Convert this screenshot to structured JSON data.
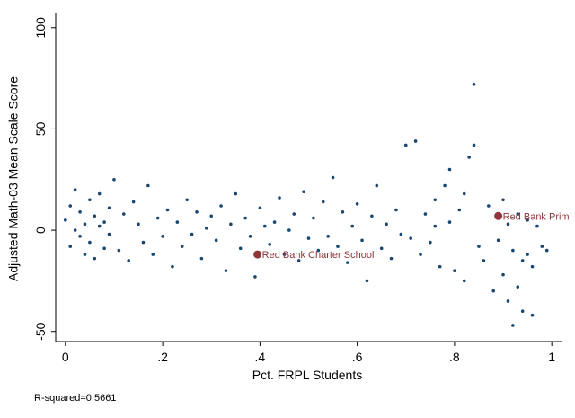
{
  "chart_data": {
    "type": "scatter",
    "xlabel": "Pct. FRPL Students",
    "ylabel": "Adjusted Math-03 Mean Scale Score",
    "note": "R-squared=0.5661",
    "xlim": [
      -0.02,
      1.02
    ],
    "ylim": [
      -55,
      107
    ],
    "xticks": [
      {
        "value": 0,
        "label": "0"
      },
      {
        "value": 0.2,
        "label": ".2"
      },
      {
        "value": 0.4,
        "label": ".4"
      },
      {
        "value": 0.6,
        "label": ".6"
      },
      {
        "value": 0.8,
        "label": ".8"
      },
      {
        "value": 1,
        "label": "1"
      }
    ],
    "yticks": [
      -50,
      0,
      50,
      100
    ],
    "series": [
      {
        "color": "#1a476f",
        "x": [
          0.0,
          0.01,
          0.01,
          0.02,
          0.02,
          0.03,
          0.03,
          0.04,
          0.04,
          0.05,
          0.05,
          0.06,
          0.06,
          0.07,
          0.07,
          0.08,
          0.08,
          0.09,
          0.09,
          0.1,
          0.11,
          0.12,
          0.13,
          0.14,
          0.15,
          0.16,
          0.17,
          0.18,
          0.19,
          0.2,
          0.21,
          0.22,
          0.23,
          0.24,
          0.25,
          0.26,
          0.27,
          0.28,
          0.29,
          0.3,
          0.31,
          0.32,
          0.33,
          0.34,
          0.35,
          0.36,
          0.37,
          0.38,
          0.39,
          0.4,
          0.42,
          0.43,
          0.44,
          0.45,
          0.46,
          0.47,
          0.48,
          0.49,
          0.5,
          0.41,
          0.51,
          0.52,
          0.53,
          0.54,
          0.55,
          0.56,
          0.57,
          0.58,
          0.59,
          0.6,
          0.61,
          0.62,
          0.63,
          0.64,
          0.65,
          0.66,
          0.67,
          0.68,
          0.69,
          0.7,
          0.72,
          0.73,
          0.74,
          0.75,
          0.76,
          0.77,
          0.78,
          0.79,
          0.8,
          0.81,
          0.82,
          0.83,
          0.84,
          0.84,
          0.85,
          0.71,
          0.76,
          0.79,
          0.82,
          0.86,
          0.87,
          0.88,
          0.89,
          0.9,
          0.9,
          0.91,
          0.91,
          0.92,
          0.92,
          0.93,
          0.93,
          0.94,
          0.94,
          0.95,
          0.95,
          0.96,
          0.96,
          0.97,
          0.98,
          0.99
        ],
        "values": [
          5,
          -8,
          12,
          0,
          20,
          -3,
          9,
          -12,
          3,
          15,
          -6,
          7,
          -14,
          2,
          18,
          -9,
          4,
          11,
          -2,
          25,
          -10,
          8,
          -15,
          14,
          3,
          -6,
          22,
          -12,
          6,
          -3,
          10,
          -18,
          4,
          -8,
          15,
          -2,
          9,
          -14,
          1,
          7,
          -5,
          12,
          -20,
          3,
          18,
          -9,
          6,
          -3,
          -23,
          11,
          -7,
          4,
          16,
          -12,
          0,
          8,
          -15,
          19,
          -4,
          2,
          6,
          -10,
          14,
          -3,
          26,
          -8,
          9,
          -16,
          2,
          13,
          -5,
          -25,
          7,
          22,
          -9,
          3,
          -14,
          10,
          -2,
          42,
          44,
          -12,
          8,
          -6,
          15,
          -18,
          22,
          4,
          -20,
          10,
          -25,
          36,
          72,
          42,
          -8,
          -4,
          2,
          30,
          18,
          -15,
          12,
          -30,
          -5,
          -22,
          15,
          -35,
          3,
          -47,
          -10,
          -28,
          8,
          -40,
          -15,
          -12,
          5,
          -42,
          -18,
          2,
          -8,
          -10
        ]
      },
      {
        "color": "#90353b",
        "labels": [
          "Red Bank Charter School",
          "Red Bank Prim"
        ],
        "x": [
          0.395,
          0.89
        ],
        "values": [
          -12,
          7
        ]
      }
    ]
  }
}
